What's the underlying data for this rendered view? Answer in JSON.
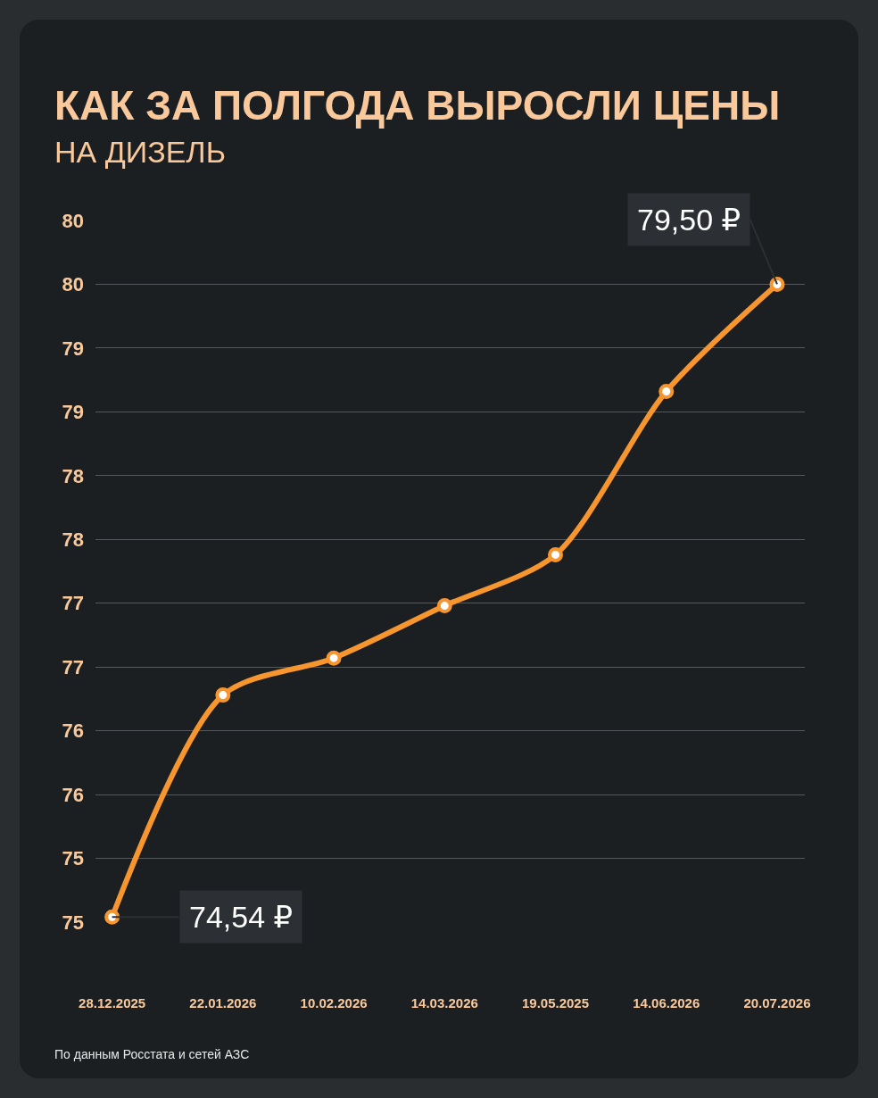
{
  "chart_data": {
    "type": "line",
    "title": "КАК ЗА ПОЛГОДА ВЫРОСЛИ ЦЕНЫ",
    "subtitle": "НА ДИЗЕЛЬ",
    "categories": [
      "28.12.2025",
      "22.01.2026",
      "10.02.2026",
      "14.03.2026",
      "19.05.2025",
      "14.06.2026",
      "20.07.2026"
    ],
    "series": [
      {
        "color": "#f7952f",
        "values": [
          74.54,
          76.28,
          76.57,
          76.98,
          77.38,
          78.66,
          79.5
        ]
      }
    ],
    "ylim": [
      74.5,
      80
    ],
    "yticks": [
      {
        "value": 74.5,
        "label": "75"
      },
      {
        "value": 75,
        "label": "75"
      },
      {
        "value": 75.5,
        "label": "76"
      },
      {
        "value": 76,
        "label": "76"
      },
      {
        "value": 76.5,
        "label": "77"
      },
      {
        "value": 77,
        "label": "77"
      },
      {
        "value": 77.5,
        "label": "78"
      },
      {
        "value": 78,
        "label": "78"
      },
      {
        "value": 78.5,
        "label": "79"
      },
      {
        "value": 79,
        "label": "79"
      },
      {
        "value": 79.5,
        "label": "80"
      },
      {
        "value": 80,
        "label": "80"
      }
    ],
    "grid": "y",
    "marker": "circle",
    "line_style": "solid",
    "annotations": [
      {
        "text": "74,54 ₽",
        "x": "28.12.2025",
        "y": 74.54
      },
      {
        "text": "79,50 ₽",
        "x": "20.07.2026",
        "y": 79.5
      },
      "По данным Росстата и сетей АЗС"
    ]
  }
}
